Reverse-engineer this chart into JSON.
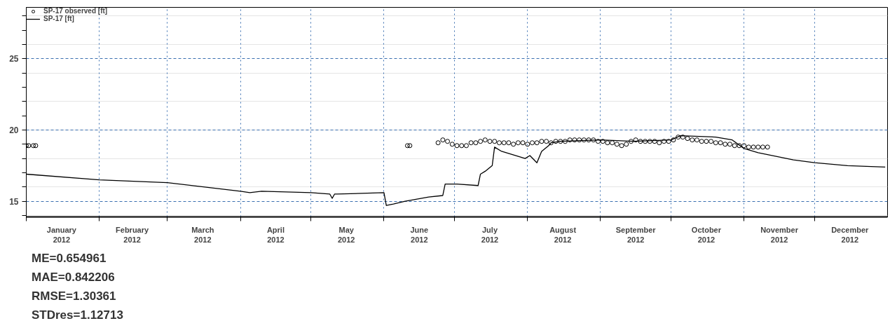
{
  "chart_data": {
    "type": "line",
    "xlim": [
      "2012-01-01",
      "2013-01-01"
    ],
    "xticks": [
      {
        "value": "2012-01-01",
        "label": null
      },
      {
        "value": "2012-02-01",
        "label": null
      },
      {
        "value": "2012-03-01",
        "label": null
      },
      {
        "value": "2012-04-01",
        "label": null
      },
      {
        "value": "2012-05-01",
        "label": null
      },
      {
        "value": "2012-06-01",
        "label": null
      },
      {
        "value": "2012-07-01",
        "label": null
      },
      {
        "value": "2012-08-01",
        "label": null
      },
      {
        "value": "2012-09-01",
        "label": null
      },
      {
        "value": "2012-10-01",
        "label": null
      },
      {
        "value": "2012-11-01",
        "label": null
      },
      {
        "value": "2012-12-01",
        "label": null
      },
      {
        "value": "2012-01-16",
        "label": "January\n2012"
      },
      {
        "value": "2012-02-15",
        "label": "February\n2012"
      },
      {
        "value": "2012-03-16",
        "label": "March\n2012"
      },
      {
        "value": "2012-04-16",
        "label": "April\n2012"
      },
      {
        "value": "2012-05-16",
        "label": "May\n2012"
      },
      {
        "value": "2012-06-16",
        "label": "June\n2012"
      },
      {
        "value": "2012-07-16",
        "label": "July\n2012"
      },
      {
        "value": "2012-08-16",
        "label": "August\n2012"
      },
      {
        "value": "2012-09-16",
        "label": "September\n2012"
      },
      {
        "value": "2012-10-16",
        "label": "October\n2012"
      },
      {
        "value": "2012-11-16",
        "label": "November\n2012"
      },
      {
        "value": "2012-12-16",
        "label": "December\n2012"
      }
    ],
    "ylim": [
      13.9,
      28.6
    ],
    "yticks": [
      {
        "value": 14,
        "label": null
      },
      15,
      {
        "value": 16,
        "label": null
      },
      {
        "value": 17,
        "label": null
      },
      {
        "value": 18,
        "label": null
      },
      {
        "value": 19,
        "label": null
      },
      20,
      {
        "value": 21,
        "label": null
      },
      {
        "value": 22,
        "label": null
      },
      {
        "value": 23,
        "label": null
      },
      {
        "value": 24,
        "label": null
      },
      25,
      {
        "value": 26,
        "label": null
      },
      {
        "value": 27,
        "label": null
      },
      {
        "value": 28,
        "label": null
      }
    ],
    "grid": true,
    "legend": "top left",
    "series": [
      {
        "name": "SP-17 observed [ft]",
        "type": "scatter",
        "marker": "circle",
        "color": "#000000",
        "x": [
          "2012-01-01",
          "2012-01-02",
          "2012-01-04",
          "2012-01-05",
          "2012-06-11",
          "2012-06-12",
          "2012-06-24",
          "2012-06-26",
          "2012-06-28",
          "2012-06-30",
          "2012-07-02",
          "2012-07-04",
          "2012-07-06",
          "2012-07-08",
          "2012-07-10",
          "2012-07-12",
          "2012-07-14",
          "2012-07-16",
          "2012-07-18",
          "2012-07-20",
          "2012-07-22",
          "2012-07-24",
          "2012-07-26",
          "2012-07-28",
          "2012-07-30",
          "2012-08-01",
          "2012-08-03",
          "2012-08-05",
          "2012-08-07",
          "2012-08-09",
          "2012-08-11",
          "2012-08-13",
          "2012-08-15",
          "2012-08-17",
          "2012-08-19",
          "2012-08-21",
          "2012-08-23",
          "2012-08-25",
          "2012-08-27",
          "2012-08-29",
          "2012-08-31",
          "2012-09-02",
          "2012-09-04",
          "2012-09-06",
          "2012-09-08",
          "2012-09-10",
          "2012-09-12",
          "2012-09-14",
          "2012-09-16",
          "2012-09-18",
          "2012-09-20",
          "2012-09-22",
          "2012-09-24",
          "2012-09-26",
          "2012-09-28",
          "2012-09-30",
          "2012-10-02",
          "2012-10-04",
          "2012-10-06",
          "2012-10-08",
          "2012-10-10",
          "2012-10-12",
          "2012-10-14",
          "2012-10-16",
          "2012-10-18",
          "2012-10-20",
          "2012-10-22",
          "2012-10-24",
          "2012-10-26",
          "2012-10-28",
          "2012-10-30",
          "2012-11-01",
          "2012-11-03",
          "2012-11-05",
          "2012-11-07",
          "2012-11-09",
          "2012-11-11"
        ],
        "values": [
          18.9,
          18.9,
          18.9,
          18.9,
          18.9,
          18.9,
          19.1,
          19.3,
          19.2,
          19.0,
          18.9,
          18.9,
          18.9,
          19.1,
          19.1,
          19.2,
          19.3,
          19.2,
          19.2,
          19.1,
          19.1,
          19.1,
          19.0,
          19.1,
          19.1,
          19.0,
          19.1,
          19.1,
          19.2,
          19.2,
          19.1,
          19.2,
          19.2,
          19.2,
          19.3,
          19.3,
          19.3,
          19.3,
          19.3,
          19.3,
          19.2,
          19.2,
          19.1,
          19.1,
          19.0,
          18.9,
          19.0,
          19.2,
          19.3,
          19.2,
          19.2,
          19.2,
          19.2,
          19.1,
          19.2,
          19.2,
          19.3,
          19.5,
          19.5,
          19.4,
          19.3,
          19.3,
          19.2,
          19.2,
          19.2,
          19.1,
          19.1,
          19.0,
          19.0,
          18.9,
          18.9,
          18.9,
          18.8,
          18.8,
          18.8,
          18.8,
          18.8
        ]
      },
      {
        "name": "SP-17 [ft]",
        "line_style": "solid",
        "color": "#000000",
        "x": [
          "2012-01-01",
          "2012-02-01",
          "2012-03-01",
          "2012-04-01",
          "2012-04-05",
          "2012-04-10",
          "2012-05-01",
          "2012-05-09",
          "2012-05-10",
          "2012-05-11",
          "2012-05-12",
          "2012-06-01",
          "2012-06-02",
          "2012-06-05",
          "2012-06-10",
          "2012-06-20",
          "2012-06-26",
          "2012-06-27",
          "2012-07-02",
          "2012-07-11",
          "2012-07-12",
          "2012-07-14",
          "2012-07-17",
          "2012-07-18",
          "2012-07-21",
          "2012-07-31",
          "2012-08-02",
          "2012-08-05",
          "2012-08-07",
          "2012-08-10",
          "2012-08-11",
          "2012-08-15",
          "2012-09-01",
          "2012-09-15",
          "2012-10-01",
          "2012-10-05",
          "2012-10-20",
          "2012-10-27",
          "2012-11-01",
          "2012-11-07",
          "2012-11-22",
          "2012-12-01",
          "2012-12-15",
          "2012-12-31"
        ],
        "values": [
          16.9,
          16.5,
          16.3,
          15.7,
          15.6,
          15.7,
          15.6,
          15.5,
          15.2,
          15.5,
          15.5,
          15.6,
          14.7,
          14.8,
          15.0,
          15.3,
          15.4,
          16.2,
          16.2,
          16.1,
          16.9,
          17.1,
          17.5,
          18.8,
          18.5,
          18.0,
          18.2,
          17.7,
          18.5,
          18.9,
          19.1,
          19.2,
          19.3,
          19.2,
          19.3,
          19.6,
          19.5,
          19.3,
          18.7,
          18.4,
          17.9,
          17.7,
          17.5,
          17.4
        ]
      }
    ],
    "annotations": [
      "ME=0.654961",
      "MAE=0.842206",
      "RMSE=1.30361",
      "STDres=1.12713"
    ]
  }
}
